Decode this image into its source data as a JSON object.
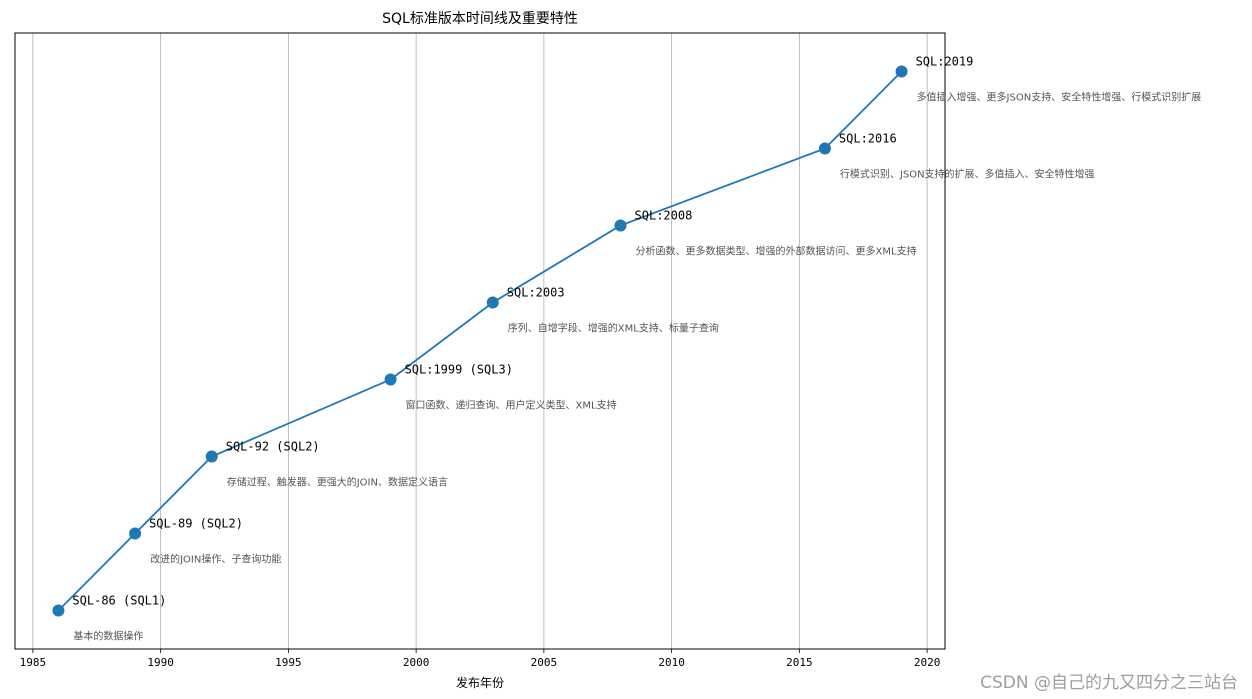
{
  "chart_data": {
    "type": "line",
    "title": "SQL标准版本时间线及重要特性",
    "xlabel": "发布年份",
    "ylabel": "",
    "xlim": [
      1984.3,
      2020.7
    ],
    "xticks": [
      1985,
      1990,
      1995,
      2000,
      2005,
      2010,
      2015,
      2020
    ],
    "xtick_labels": [
      "1985",
      "1990",
      "1995",
      "2000",
      "2005",
      "2010",
      "2015",
      "2020"
    ],
    "ylim": [
      -0.5,
      7.5
    ],
    "grid": "vertical",
    "series": [
      {
        "color": "#1f77b4",
        "x": [
          1986,
          1989,
          1992,
          1999,
          2003,
          2008,
          2016,
          2019
        ],
        "y": [
          0,
          1,
          2,
          3,
          4,
          5,
          6,
          7
        ]
      }
    ],
    "annotations": [
      {
        "name": "SQL-86 (SQL1)",
        "desc": "基本的数据操作"
      },
      {
        "name": "SQL-89 (SQL2)",
        "desc": "改进的JOIN操作、子查询功能"
      },
      {
        "name": "SQL-92 (SQL2)",
        "desc": "存储过程、触发器、更强大的JOIN、数据定义语言"
      },
      {
        "name": "SQL:1999 (SQL3)",
        "desc": "窗口函数、递归查询、用户定义类型、XML支持"
      },
      {
        "name": "SQL:2003",
        "desc": "序列、自增字段、增强的XML支持、标量子查询"
      },
      {
        "name": "SQL:2008",
        "desc": "分析函数、更多数据类型、增强的外部数据访问、更多XML支持"
      },
      {
        "name": "SQL:2016",
        "desc": "行模式识别、JSON支持的扩展、多值插入、安全特性增强"
      },
      {
        "name": "SQL:2019",
        "desc": "多值插入增强、更多JSON支持、安全特性增强、行模式识别扩展"
      }
    ]
  },
  "watermark": "CSDN @自己的九又四分之三站台"
}
